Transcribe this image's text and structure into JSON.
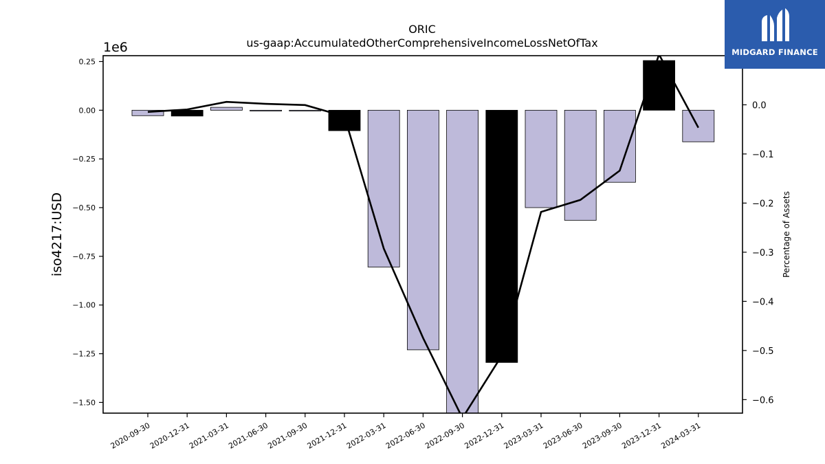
{
  "brand": {
    "name": "MIDGARD FINANCE",
    "logo_icon": "midgard-m-icon",
    "color": "#2b5cad"
  },
  "chart_data": {
    "type": "bar",
    "title": "ORIC",
    "subtitle": "us-gaap:AccumulatedOtherComprehensiveIncomeLossNetOfTax",
    "ylabel": "iso4217:USD",
    "y2label": "Percentage of Assets",
    "y_offset_label": "1e6",
    "ylim": [
      -1.555,
      0.28
    ],
    "y2lim": [
      -0.6275,
      0.1
    ],
    "yticks": [
      "0.25",
      "0.00",
      "−0.25",
      "−0.50",
      "−0.75",
      "−1.00",
      "−1.25",
      "−1.50"
    ],
    "y2ticks": [
      "0.0",
      "−0.1",
      "−0.2",
      "−0.3",
      "−0.4",
      "−0.5",
      "−0.6"
    ],
    "categories": [
      "2020-09-30",
      "2020-12-31",
      "2021-03-31",
      "2021-06-30",
      "2021-09-30",
      "2021-12-31",
      "2022-03-31",
      "2022-06-30",
      "2022-09-30",
      "2022-12-31",
      "2023-03-31",
      "2023-06-30",
      "2023-09-30",
      "2023-12-31",
      "2024-03-31"
    ],
    "series": [
      {
        "values": [
          -0.028,
          -0.03,
          0.015,
          -0.004,
          -0.004,
          -0.105,
          -0.805,
          -1.23,
          -1.56,
          -1.295,
          -0.5,
          -0.565,
          -0.37,
          0.255,
          -0.162
        ],
        "highlight": [
          false,
          true,
          false,
          false,
          false,
          true,
          false,
          false,
          false,
          true,
          false,
          false,
          false,
          true,
          false
        ]
      },
      {
        "values": [
          -0.0145,
          -0.0095,
          0.006,
          0.002,
          -0.0005,
          -0.0235,
          -0.2925,
          -0.4745,
          -0.6375,
          -0.5105,
          -0.218,
          -0.1935,
          -0.134,
          0.1025,
          -0.0465
        ]
      }
    ],
    "colors": {
      "bar": "#bebada",
      "bar_highlight": "#000000",
      "line": "#000000"
    }
  }
}
